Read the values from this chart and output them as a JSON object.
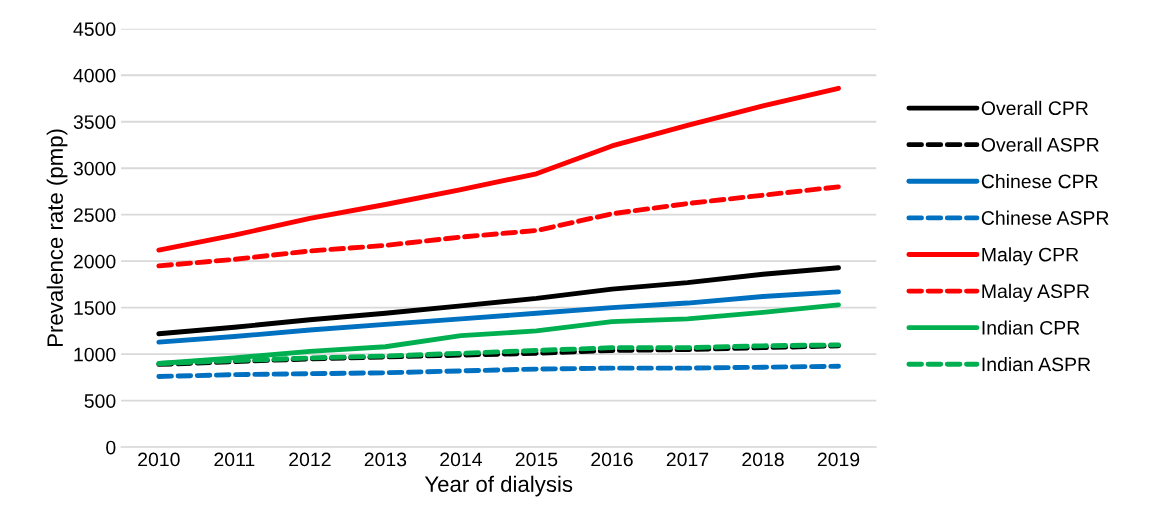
{
  "chart_data": {
    "type": "line",
    "xlabel": "Year of dialysis",
    "ylabel": "Prevalence rate (pmp)",
    "categories": [
      "2010",
      "2011",
      "2012",
      "2013",
      "2014",
      "2015",
      "2016",
      "2017",
      "2018",
      "2019"
    ],
    "ylim": [
      0,
      4500
    ],
    "yticks": [
      0,
      500,
      1000,
      1500,
      2000,
      2500,
      3000,
      3500,
      4000,
      4500
    ],
    "grid": "y",
    "legend": "right",
    "marker": "none",
    "series": [
      {
        "name": "Overall CPR",
        "color": "#000000",
        "line_style": "solid",
        "values": [
          1220,
          1290,
          1370,
          1440,
          1520,
          1600,
          1700,
          1770,
          1860,
          1930
        ]
      },
      {
        "name": "Overall ASPR",
        "color": "#000000",
        "line_style": "dashed",
        "values": [
          890,
          920,
          950,
          970,
          990,
          1010,
          1040,
          1050,
          1070,
          1090
        ]
      },
      {
        "name": "Chinese CPR",
        "color": "#0070c0",
        "line_style": "solid",
        "values": [
          1130,
          1190,
          1260,
          1320,
          1380,
          1440,
          1500,
          1550,
          1620,
          1670
        ]
      },
      {
        "name": "Chinese ASPR",
        "color": "#0070c0",
        "line_style": "dashed",
        "values": [
          760,
          780,
          790,
          800,
          820,
          840,
          850,
          850,
          860,
          870
        ]
      },
      {
        "name": "Malay CPR",
        "color": "#ff0000",
        "line_style": "solid",
        "values": [
          2120,
          2280,
          2460,
          2610,
          2770,
          2940,
          3240,
          3460,
          3670,
          3860
        ]
      },
      {
        "name": "Malay ASPR",
        "color": "#ff0000",
        "line_style": "dashed",
        "values": [
          1950,
          2020,
          2110,
          2170,
          2260,
          2330,
          2510,
          2620,
          2710,
          2800
        ]
      },
      {
        "name": "Indian CPR",
        "color": "#00b050",
        "line_style": "solid",
        "values": [
          900,
          960,
          1030,
          1080,
          1200,
          1250,
          1350,
          1380,
          1450,
          1530
        ]
      },
      {
        "name": "Indian ASPR",
        "color": "#00b050",
        "line_style": "dashed",
        "values": [
          900,
          930,
          960,
          980,
          1010,
          1040,
          1070,
          1070,
          1090,
          1100
        ]
      }
    ]
  }
}
